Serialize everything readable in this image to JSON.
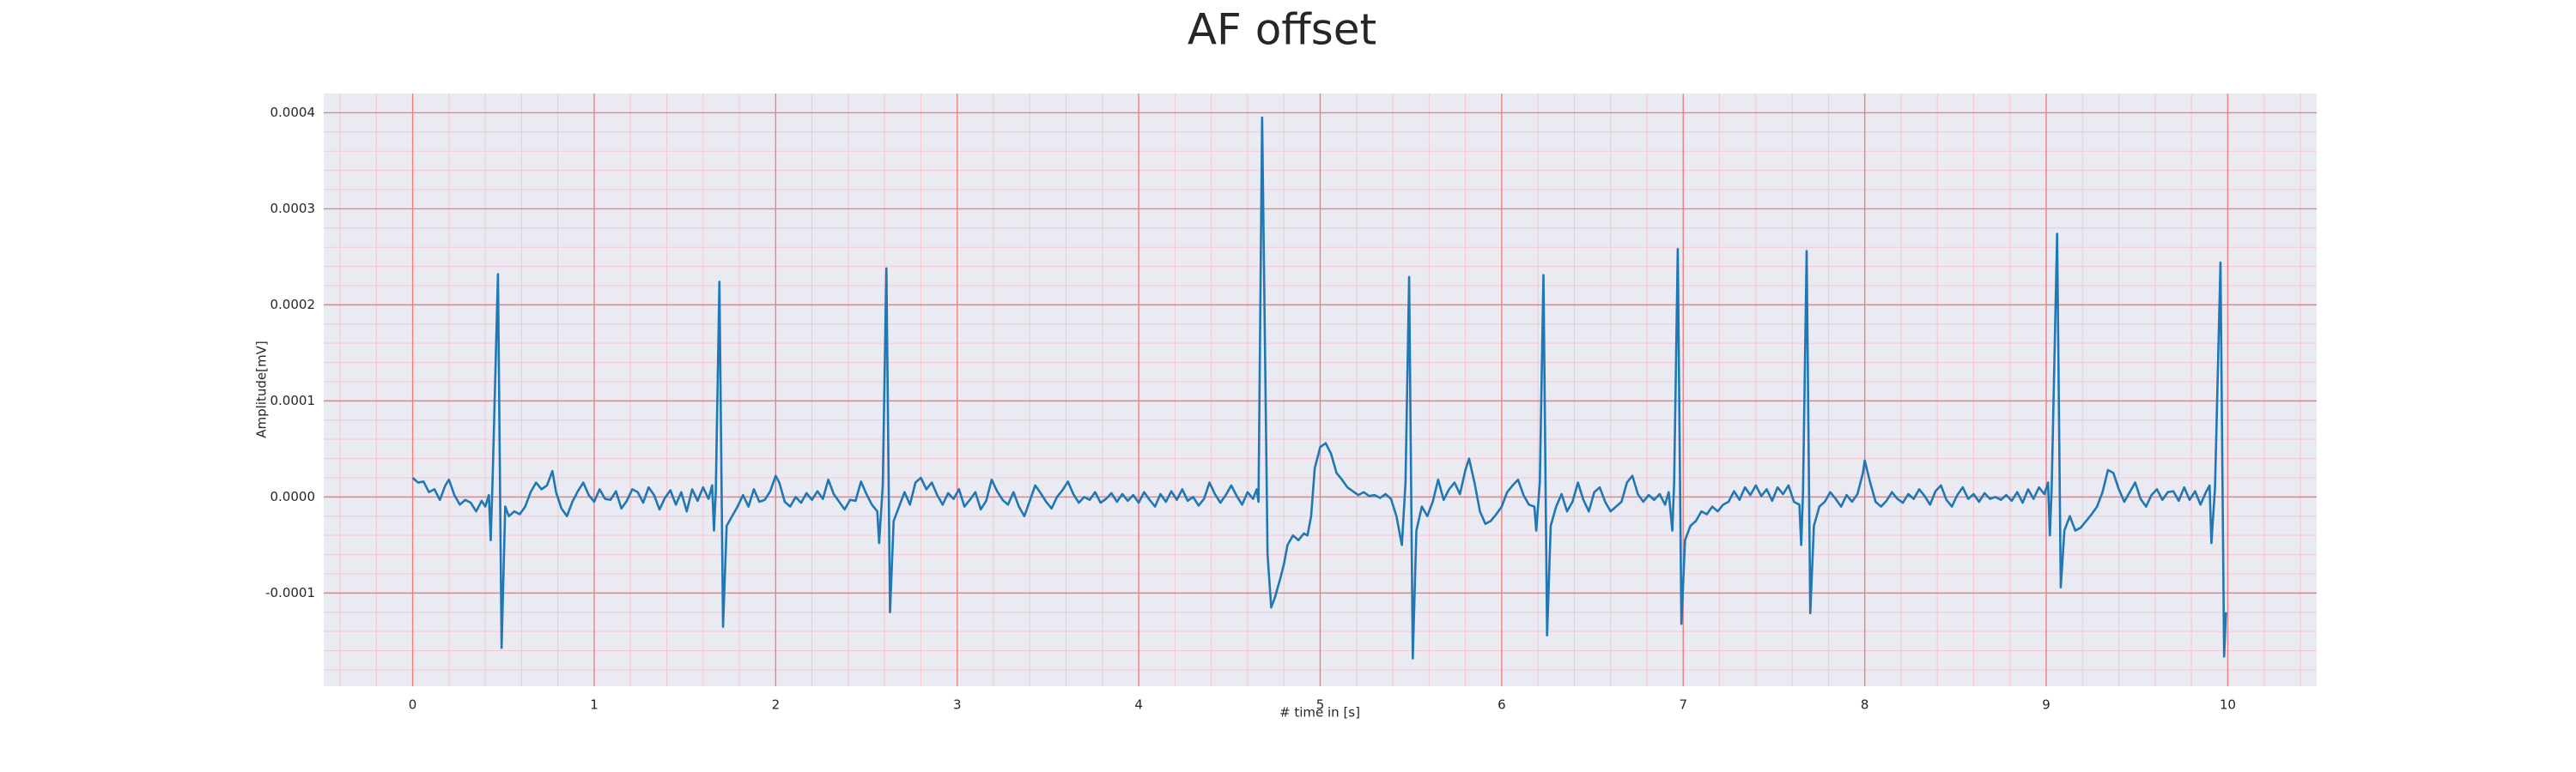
{
  "chart_data": {
    "type": "line",
    "title": "AF offset",
    "xlabel": "# time in [s]",
    "ylabel": "Amplitude[mV]",
    "color": "#1f77b4",
    "background": "#eaeaf2",
    "grid": true,
    "grid_color": "#f08080",
    "minor_grid": true,
    "minor_grid_color": "#f7c6cf",
    "xlim": [
      -0.49,
      10.49
    ],
    "ylim": [
      -0.000197,
      0.00042
    ],
    "xticks": [
      0,
      1,
      2,
      3,
      4,
      5,
      6,
      7,
      8,
      9,
      10
    ],
    "yticks": [
      -0.0001,
      {
        "value": 0,
        "label": "0.0000"
      },
      0.0001,
      0.0002,
      0.0003,
      0.0004
    ],
    "x": [
      0,
      0.03,
      0.06,
      0.09,
      0.12,
      0.15,
      0.18,
      0.2,
      0.23,
      0.26,
      0.29,
      0.32,
      0.35,
      0.38,
      0.4,
      0.42,
      0.43,
      0.44,
      0.47,
      0.49,
      0.51,
      0.53,
      0.56,
      0.59,
      0.62,
      0.65,
      0.68,
      0.71,
      0.74,
      0.77,
      0.79,
      0.82,
      0.85,
      0.88,
      0.91,
      0.94,
      0.97,
      1,
      1.03,
      1.06,
      1.09,
      1.12,
      1.15,
      1.18,
      1.21,
      1.24,
      1.27,
      1.3,
      1.33,
      1.36,
      1.39,
      1.42,
      1.45,
      1.48,
      1.51,
      1.54,
      1.57,
      1.6,
      1.63,
      1.65,
      1.66,
      1.67,
      1.69,
      1.71,
      1.73,
      1.76,
      1.79,
      1.82,
      1.85,
      1.88,
      1.91,
      1.94,
      1.97,
      2,
      2.02,
      2.05,
      2.08,
      2.11,
      2.14,
      2.17,
      2.2,
      2.23,
      2.26,
      2.29,
      2.32,
      2.35,
      2.38,
      2.41,
      2.44,
      2.47,
      2.5,
      2.53,
      2.56,
      2.57,
      2.59,
      2.61,
      2.63,
      2.65,
      2.68,
      2.71,
      2.74,
      2.77,
      2.8,
      2.83,
      2.86,
      2.89,
      2.92,
      2.95,
      2.98,
      3.01,
      3.04,
      3.07,
      3.1,
      3.13,
      3.16,
      3.19,
      3.22,
      3.25,
      3.28,
      3.31,
      3.34,
      3.37,
      3.4,
      3.43,
      3.46,
      3.49,
      3.52,
      3.55,
      3.58,
      3.61,
      3.64,
      3.67,
      3.7,
      3.73,
      3.76,
      3.79,
      3.82,
      3.85,
      3.88,
      3.91,
      3.94,
      3.97,
      4,
      4.03,
      4.06,
      4.09,
      4.12,
      4.15,
      4.18,
      4.21,
      4.24,
      4.27,
      4.3,
      4.33,
      4.36,
      4.39,
      4.42,
      4.45,
      4.48,
      4.51,
      4.54,
      4.57,
      4.6,
      4.63,
      4.65,
      4.66,
      4.68,
      4.71,
      4.73,
      4.75,
      4.78,
      4.8,
      4.82,
      4.85,
      4.88,
      4.91,
      4.93,
      4.95,
      4.97,
      5,
      5.03,
      5.06,
      5.09,
      5.12,
      5.15,
      5.18,
      5.21,
      5.24,
      5.27,
      5.3,
      5.33,
      5.36,
      5.39,
      5.42,
      5.45,
      5.47,
      5.49,
      5.51,
      5.53,
      5.56,
      5.59,
      5.62,
      5.65,
      5.68,
      5.71,
      5.74,
      5.77,
      5.8,
      5.82,
      5.85,
      5.88,
      5.91,
      5.94,
      5.97,
      6,
      6.03,
      6.06,
      6.09,
      6.12,
      6.15,
      6.18,
      6.19,
      6.21,
      6.23,
      6.25,
      6.27,
      6.3,
      6.33,
      6.36,
      6.39,
      6.42,
      6.45,
      6.48,
      6.51,
      6.54,
      6.57,
      6.6,
      6.63,
      6.66,
      6.69,
      6.72,
      6.75,
      6.78,
      6.81,
      6.84,
      6.87,
      6.9,
      6.92,
      6.94,
      6.95,
      6.97,
      6.99,
      7.01,
      7.04,
      7.07,
      7.1,
      7.13,
      7.16,
      7.19,
      7.22,
      7.25,
      7.28,
      7.31,
      7.34,
      7.37,
      7.4,
      7.43,
      7.46,
      7.49,
      7.52,
      7.55,
      7.58,
      7.61,
      7.64,
      7.65,
      7.66,
      7.68,
      7.7,
      7.72,
      7.75,
      7.78,
      7.81,
      7.84,
      7.87,
      7.9,
      7.93,
      7.96,
      7.99,
      8,
      8.03,
      8.06,
      8.09,
      8.12,
      8.15,
      8.18,
      8.21,
      8.24,
      8.27,
      8.3,
      8.33,
      8.36,
      8.39,
      8.42,
      8.45,
      8.48,
      8.51,
      8.54,
      8.57,
      8.6,
      8.63,
      8.66,
      8.69,
      8.72,
      8.75,
      8.78,
      8.81,
      8.84,
      8.87,
      8.9,
      8.93,
      8.96,
      8.99,
      9.01,
      9.02,
      9.03,
      9.06,
      9.08,
      9.1,
      9.13,
      9.16,
      9.19,
      9.22,
      9.25,
      9.28,
      9.31,
      9.34,
      9.37,
      9.4,
      9.43,
      9.46,
      9.49,
      9.52,
      9.55,
      9.58,
      9.61,
      9.64,
      9.67,
      9.7,
      9.73,
      9.76,
      9.79,
      9.82,
      9.85,
      9.88,
      9.9,
      9.91,
      9.93,
      9.96,
      9.98,
      9.99
    ],
    "values": [
      2e-05,
      1.5e-05,
      1.6e-05,
      5e-06,
      8e-06,
      -3e-06,
      1.2e-05,
      1.8e-05,
      2e-06,
      -8e-06,
      -3e-06,
      -6e-06,
      -1.5e-05,
      -4e-06,
      -1e-05,
      2e-06,
      -4.5e-05,
      1.5e-05,
      0.000232,
      -0.000157,
      -1e-05,
      -2e-05,
      -1.5e-05,
      -1.8e-05,
      -1e-05,
      5e-06,
      1.5e-05,
      8e-06,
      1.2e-05,
      2.7e-05,
      5e-06,
      -1.2e-05,
      -2e-05,
      -5e-06,
      6e-06,
      1.5e-05,
      2e-06,
      -5e-06,
      8e-06,
      -2e-06,
      -3e-06,
      6e-06,
      -1.2e-05,
      -4e-06,
      8e-06,
      5e-06,
      -6e-06,
      1e-05,
      2e-06,
      -1.3e-05,
      -1e-06,
      7e-06,
      -8e-06,
      5e-06,
      -1.5e-05,
      8e-06,
      -4e-06,
      1e-05,
      -2e-06,
      1.2e-05,
      -3.5e-05,
      5e-06,
      0.000224,
      -0.000135,
      -3e-05,
      -2e-05,
      -1e-05,
      2e-06,
      -1e-05,
      8e-06,
      -5e-06,
      -3e-06,
      6e-06,
      2.2e-05,
      1.5e-05,
      -5e-06,
      -1e-05,
      0,
      -6e-06,
      4e-06,
      -3e-06,
      6e-06,
      -2e-06,
      1.8e-05,
      3e-06,
      -5e-06,
      -1.3e-05,
      -3e-06,
      -4e-06,
      1.6e-05,
      3e-06,
      -8e-06,
      -1.5e-05,
      -4.8e-05,
      1.2e-05,
      0.000238,
      -0.00012,
      -2.5e-05,
      -1e-05,
      5e-06,
      -8e-06,
      1.5e-05,
      2e-05,
      8e-06,
      1.5e-05,
      2e-06,
      -8e-06,
      4e-06,
      -2e-06,
      8e-06,
      -1e-05,
      -3e-06,
      5e-06,
      -1.3e-05,
      -4e-06,
      1.8e-05,
      6e-06,
      -3e-06,
      -8e-06,
      5e-06,
      -1e-05,
      -2e-05,
      -4e-06,
      1.2e-05,
      4e-06,
      -5e-06,
      -1.2e-05,
      0,
      7e-06,
      1.6e-05,
      3e-06,
      -6e-06,
      0,
      -3e-06,
      5e-06,
      -6e-06,
      -2e-06,
      4e-06,
      -5e-06,
      3e-06,
      -4e-06,
      2e-06,
      -6e-06,
      5e-06,
      -3e-06,
      -1e-05,
      3e-06,
      -5e-06,
      6e-06,
      -3e-06,
      8e-06,
      -4e-06,
      0,
      -9e-06,
      -2e-06,
      1.5e-05,
      3e-06,
      -6e-06,
      2e-06,
      1.2e-05,
      1e-06,
      -8e-06,
      5e-06,
      -2e-06,
      8e-06,
      -5e-06,
      0.000395,
      -6e-05,
      -0.000115,
      -0.000105,
      -8.5e-05,
      -7e-05,
      -5e-05,
      -4e-05,
      -4.5e-05,
      -3.8e-05,
      -4e-05,
      -2e-05,
      3e-05,
      5.2e-05,
      5.6e-05,
      4.5e-05,
      2.5e-05,
      1.8e-05,
      1e-05,
      6e-06,
      2e-06,
      5e-06,
      1e-06,
      2e-06,
      -1e-06,
      3e-06,
      -2e-06,
      -2e-05,
      -5e-05,
      1.5e-05,
      0.000229,
      -0.000168,
      -3.5e-05,
      -1e-05,
      -2e-05,
      -5e-06,
      1.8e-05,
      -3e-06,
      8e-06,
      1.5e-05,
      3e-06,
      2.8e-05,
      4e-05,
      1.5e-05,
      -1.5e-05,
      -2.8e-05,
      -2.5e-05,
      -1.8e-05,
      -1e-05,
      5e-06,
      1.2e-05,
      1.8e-05,
      2e-06,
      -8e-06,
      -1e-05,
      -3.5e-05,
      1.5e-05,
      0.000231,
      -0.000144,
      -3e-05,
      -1e-05,
      3e-06,
      -1.5e-05,
      -5e-06,
      1.5e-05,
      -3e-06,
      -1.5e-05,
      5e-06,
      1e-05,
      -5e-06,
      -1.5e-05,
      -1e-05,
      -5e-06,
      1.5e-05,
      2.2e-05,
      3e-06,
      -5e-06,
      2e-06,
      -3e-06,
      3e-06,
      -8e-06,
      5e-06,
      -3.5e-05,
      1.5e-05,
      0.000258,
      -0.000132,
      -4.5e-05,
      -3e-05,
      -2.5e-05,
      -1.5e-05,
      -1.8e-05,
      -1e-05,
      -1.5e-05,
      -8e-06,
      -5e-06,
      6e-06,
      -3e-06,
      1e-05,
      2e-06,
      1.2e-05,
      1e-06,
      8e-06,
      -4e-06,
      1e-05,
      3e-06,
      1.2e-05,
      -5e-06,
      -8e-06,
      -5e-05,
      5e-06,
      0.000256,
      -0.000121,
      -3e-05,
      -1e-05,
      -5e-06,
      5e-06,
      -2e-06,
      -1e-05,
      2e-06,
      -5e-06,
      3e-06,
      2.5e-05,
      3.8e-05,
      1.5e-05,
      -5e-06,
      -1e-05,
      -4e-06,
      5e-06,
      -2e-06,
      -6e-06,
      3e-06,
      -2e-06,
      8e-06,
      1e-06,
      -8e-06,
      6e-06,
      1.2e-05,
      -3e-06,
      -1e-05,
      2e-06,
      1e-05,
      -2e-06,
      3e-06,
      -5e-06,
      4e-06,
      -2e-06,
      0,
      -3e-06,
      2e-06,
      -4e-06,
      5e-06,
      -6e-06,
      8e-06,
      -2e-06,
      1e-05,
      3e-06,
      1.5e-05,
      -4e-05,
      1e-05,
      0.000274,
      -9.4e-05,
      -3.5e-05,
      -2e-05,
      -3.5e-05,
      -3.2e-05,
      -2.5e-05,
      -1.8e-05,
      -1e-05,
      5e-06,
      2.8e-05,
      2.5e-05,
      8e-06,
      -5e-06,
      5e-06,
      1.5e-05,
      -2e-06,
      -1e-05,
      2e-06,
      8e-06,
      -3e-06,
      5e-06,
      6e-06,
      -4e-06,
      1e-05,
      -3e-06,
      6e-06,
      -8e-06,
      5e-06,
      1.2e-05,
      -4.8e-05,
      1e-05,
      0.000244,
      -0.000166,
      -0.00012
    ]
  }
}
